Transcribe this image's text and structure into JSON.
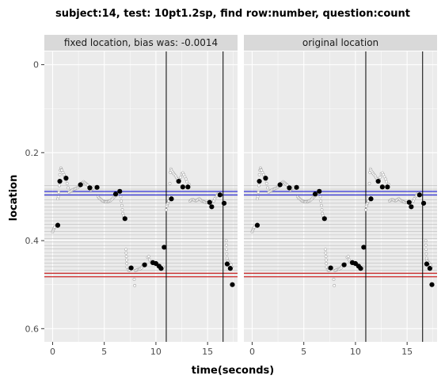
{
  "chart_data": {
    "type": "scatter",
    "title": "subject:14, test: 10pt1.2sp, find row:number, question:count",
    "xlabel": "time(seconds)",
    "ylabel": "location",
    "xlim": [
      -0.8,
      17.9
    ],
    "ylim": [
      0.63,
      -0.03
    ],
    "y_reversed": true,
    "x_ticks": [
      0,
      5,
      10,
      15
    ],
    "x_tick_labels": [
      "0",
      "5",
      "10",
      "15"
    ],
    "y_ticks": [
      0.0,
      0.2,
      0.4,
      0.6
    ],
    "y_tick_labels": [
      "0",
      "0.2",
      "0.4",
      "0.6"
    ],
    "grid": true,
    "panels": [
      {
        "strip": "fixed location, bias was: -0.0014"
      },
      {
        "strip": "original location"
      }
    ],
    "colors": {
      "panel_bg": "#ebebeb",
      "strip_bg": "#d9d9d9",
      "blue_lines": "#0000cc",
      "red_lines": "#cc0000",
      "row_lines": "#bdbdbd",
      "raw_points": "#a6a6a6",
      "fixations": "#000000",
      "vlines": "#000000"
    },
    "vertical_lines_x": [
      11.0,
      16.5
    ],
    "blue_lines_y": [
      0.288,
      0.296
    ],
    "red_lines_y": [
      0.474,
      0.482
    ],
    "row_lines_y": [
      0.275,
      0.283,
      0.291,
      0.299,
      0.307,
      0.315,
      0.323,
      0.331,
      0.339,
      0.347,
      0.355,
      0.363,
      0.371,
      0.379,
      0.387,
      0.395,
      0.403,
      0.411,
      0.419,
      0.427,
      0.435,
      0.443,
      0.451,
      0.459,
      0.467,
      0.475,
      0.483
    ],
    "fixations": [
      {
        "x": 0.5,
        "y": 0.365
      },
      {
        "x": 0.7,
        "y": 0.265
      },
      {
        "x": 1.3,
        "y": 0.258
      },
      {
        "x": 2.7,
        "y": 0.273
      },
      {
        "x": 3.6,
        "y": 0.28
      },
      {
        "x": 4.3,
        "y": 0.279
      },
      {
        "x": 6.1,
        "y": 0.294
      },
      {
        "x": 6.5,
        "y": 0.288
      },
      {
        "x": 7.0,
        "y": 0.35
      },
      {
        "x": 7.6,
        "y": 0.462
      },
      {
        "x": 8.9,
        "y": 0.455
      },
      {
        "x": 9.7,
        "y": 0.45
      },
      {
        "x": 10.0,
        "y": 0.452
      },
      {
        "x": 10.3,
        "y": 0.458
      },
      {
        "x": 10.5,
        "y": 0.463
      },
      {
        "x": 10.8,
        "y": 0.415
      },
      {
        "x": 11.5,
        "y": 0.305
      },
      {
        "x": 12.2,
        "y": 0.265
      },
      {
        "x": 12.6,
        "y": 0.278
      },
      {
        "x": 13.1,
        "y": 0.278
      },
      {
        "x": 15.2,
        "y": 0.313
      },
      {
        "x": 15.4,
        "y": 0.323
      },
      {
        "x": 16.2,
        "y": 0.296
      },
      {
        "x": 16.6,
        "y": 0.315
      },
      {
        "x": 16.9,
        "y": 0.453
      },
      {
        "x": 17.2,
        "y": 0.463
      },
      {
        "x": 17.4,
        "y": 0.5
      }
    ],
    "raw_points": [
      {
        "x": 0.0,
        "y": 0.38
      },
      {
        "x": 0.05,
        "y": 0.377
      },
      {
        "x": 0.1,
        "y": 0.374
      },
      {
        "x": 0.15,
        "y": 0.371
      },
      {
        "x": 0.2,
        "y": 0.369
      },
      {
        "x": 0.4,
        "y": 0.366
      },
      {
        "x": 0.45,
        "y": 0.364
      },
      {
        "x": 0.5,
        "y": 0.305
      },
      {
        "x": 0.55,
        "y": 0.3
      },
      {
        "x": 0.6,
        "y": 0.29
      },
      {
        "x": 0.65,
        "y": 0.275
      },
      {
        "x": 0.7,
        "y": 0.25
      },
      {
        "x": 0.75,
        "y": 0.24
      },
      {
        "x": 0.8,
        "y": 0.235
      },
      {
        "x": 0.85,
        "y": 0.238
      },
      {
        "x": 0.9,
        "y": 0.24
      },
      {
        "x": 1.0,
        "y": 0.245
      },
      {
        "x": 1.1,
        "y": 0.25
      },
      {
        "x": 1.2,
        "y": 0.255
      },
      {
        "x": 1.3,
        "y": 0.262
      },
      {
        "x": 1.4,
        "y": 0.27
      },
      {
        "x": 1.5,
        "y": 0.28
      },
      {
        "x": 1.6,
        "y": 0.29
      },
      {
        "x": 1.7,
        "y": 0.288
      },
      {
        "x": 1.8,
        "y": 0.286
      },
      {
        "x": 1.9,
        "y": 0.285
      },
      {
        "x": 2.0,
        "y": 0.284
      },
      {
        "x": 2.1,
        "y": 0.283
      },
      {
        "x": 2.2,
        "y": 0.282
      },
      {
        "x": 2.3,
        "y": 0.281
      },
      {
        "x": 2.4,
        "y": 0.28
      },
      {
        "x": 2.5,
        "y": 0.278
      },
      {
        "x": 2.6,
        "y": 0.276
      },
      {
        "x": 2.7,
        "y": 0.272
      },
      {
        "x": 2.8,
        "y": 0.27
      },
      {
        "x": 2.9,
        "y": 0.268
      },
      {
        "x": 3.0,
        "y": 0.266
      },
      {
        "x": 3.1,
        "y": 0.268
      },
      {
        "x": 3.2,
        "y": 0.27
      },
      {
        "x": 3.3,
        "y": 0.272
      },
      {
        "x": 3.4,
        "y": 0.274
      },
      {
        "x": 3.5,
        "y": 0.278
      },
      {
        "x": 3.6,
        "y": 0.282
      },
      {
        "x": 3.7,
        "y": 0.285
      },
      {
        "x": 3.8,
        "y": 0.283
      },
      {
        "x": 3.9,
        "y": 0.281
      },
      {
        "x": 4.0,
        "y": 0.28
      },
      {
        "x": 4.2,
        "y": 0.281
      },
      {
        "x": 4.4,
        "y": 0.3
      },
      {
        "x": 4.5,
        "y": 0.303
      },
      {
        "x": 4.6,
        "y": 0.305
      },
      {
        "x": 4.7,
        "y": 0.307
      },
      {
        "x": 4.8,
        "y": 0.309
      },
      {
        "x": 4.9,
        "y": 0.31
      },
      {
        "x": 5.0,
        "y": 0.311
      },
      {
        "x": 5.1,
        "y": 0.312
      },
      {
        "x": 5.2,
        "y": 0.312
      },
      {
        "x": 5.3,
        "y": 0.311
      },
      {
        "x": 5.4,
        "y": 0.311
      },
      {
        "x": 5.5,
        "y": 0.31
      },
      {
        "x": 5.6,
        "y": 0.309
      },
      {
        "x": 5.7,
        "y": 0.307
      },
      {
        "x": 5.8,
        "y": 0.305
      },
      {
        "x": 5.9,
        "y": 0.302
      },
      {
        "x": 6.0,
        "y": 0.3
      },
      {
        "x": 6.1,
        "y": 0.298
      },
      {
        "x": 6.2,
        "y": 0.296
      },
      {
        "x": 6.3,
        "y": 0.293
      },
      {
        "x": 6.4,
        "y": 0.291
      },
      {
        "x": 6.5,
        "y": 0.292
      },
      {
        "x": 6.6,
        "y": 0.3
      },
      {
        "x": 6.65,
        "y": 0.31
      },
      {
        "x": 6.7,
        "y": 0.32
      },
      {
        "x": 6.75,
        "y": 0.33
      },
      {
        "x": 6.8,
        "y": 0.338
      },
      {
        "x": 6.85,
        "y": 0.343
      },
      {
        "x": 7.1,
        "y": 0.42
      },
      {
        "x": 7.12,
        "y": 0.428
      },
      {
        "x": 7.14,
        "y": 0.436
      },
      {
        "x": 7.16,
        "y": 0.444
      },
      {
        "x": 7.18,
        "y": 0.452
      },
      {
        "x": 7.2,
        "y": 0.46
      },
      {
        "x": 7.3,
        "y": 0.466
      },
      {
        "x": 7.4,
        "y": 0.468
      },
      {
        "x": 7.5,
        "y": 0.467
      },
      {
        "x": 7.9,
        "y": 0.488
      },
      {
        "x": 7.95,
        "y": 0.502
      },
      {
        "x": 8.0,
        "y": 0.468
      },
      {
        "x": 8.1,
        "y": 0.467
      },
      {
        "x": 8.2,
        "y": 0.466
      },
      {
        "x": 8.3,
        "y": 0.465
      },
      {
        "x": 8.4,
        "y": 0.465
      },
      {
        "x": 8.5,
        "y": 0.464
      },
      {
        "x": 8.6,
        "y": 0.462
      },
      {
        "x": 8.7,
        "y": 0.458
      },
      {
        "x": 8.8,
        "y": 0.455
      },
      {
        "x": 9.0,
        "y": 0.453
      },
      {
        "x": 9.2,
        "y": 0.438
      },
      {
        "x": 9.3,
        "y": 0.436
      },
      {
        "x": 9.4,
        "y": 0.444
      },
      {
        "x": 9.5,
        "y": 0.448
      },
      {
        "x": 9.6,
        "y": 0.449
      },
      {
        "x": 9.8,
        "y": 0.452
      },
      {
        "x": 9.9,
        "y": 0.452
      },
      {
        "x": 10.1,
        "y": 0.454
      },
      {
        "x": 10.2,
        "y": 0.456
      },
      {
        "x": 10.4,
        "y": 0.458
      },
      {
        "x": 10.6,
        "y": 0.465
      },
      {
        "x": 10.7,
        "y": 0.46
      },
      {
        "x": 11.0,
        "y": 0.33
      },
      {
        "x": 11.05,
        "y": 0.322
      },
      {
        "x": 11.1,
        "y": 0.318
      },
      {
        "x": 11.15,
        "y": 0.315
      },
      {
        "x": 11.2,
        "y": 0.312
      },
      {
        "x": 11.25,
        "y": 0.31
      },
      {
        "x": 11.3,
        "y": 0.3
      },
      {
        "x": 11.35,
        "y": 0.27
      },
      {
        "x": 11.4,
        "y": 0.245
      },
      {
        "x": 11.45,
        "y": 0.237
      },
      {
        "x": 11.5,
        "y": 0.24
      },
      {
        "x": 11.6,
        "y": 0.244
      },
      {
        "x": 11.7,
        "y": 0.247
      },
      {
        "x": 11.8,
        "y": 0.25
      },
      {
        "x": 11.9,
        "y": 0.253
      },
      {
        "x": 12.0,
        "y": 0.257
      },
      {
        "x": 12.1,
        "y": 0.26
      },
      {
        "x": 12.3,
        "y": 0.262
      },
      {
        "x": 12.4,
        "y": 0.256
      },
      {
        "x": 12.5,
        "y": 0.248
      },
      {
        "x": 12.6,
        "y": 0.246
      },
      {
        "x": 12.7,
        "y": 0.25
      },
      {
        "x": 12.8,
        "y": 0.255
      },
      {
        "x": 12.9,
        "y": 0.26
      },
      {
        "x": 13.0,
        "y": 0.266
      },
      {
        "x": 13.2,
        "y": 0.272
      },
      {
        "x": 13.3,
        "y": 0.31
      },
      {
        "x": 13.4,
        "y": 0.308
      },
      {
        "x": 13.5,
        "y": 0.307
      },
      {
        "x": 13.6,
        "y": 0.307
      },
      {
        "x": 13.7,
        "y": 0.308
      },
      {
        "x": 13.8,
        "y": 0.309
      },
      {
        "x": 13.9,
        "y": 0.309
      },
      {
        "x": 14.0,
        "y": 0.308
      },
      {
        "x": 14.1,
        "y": 0.306
      },
      {
        "x": 14.2,
        "y": 0.305
      },
      {
        "x": 14.3,
        "y": 0.307
      },
      {
        "x": 14.4,
        "y": 0.309
      },
      {
        "x": 14.5,
        "y": 0.31
      },
      {
        "x": 14.6,
        "y": 0.311
      },
      {
        "x": 14.7,
        "y": 0.312
      },
      {
        "x": 14.8,
        "y": 0.313
      },
      {
        "x": 14.9,
        "y": 0.313
      },
      {
        "x": 15.0,
        "y": 0.313
      },
      {
        "x": 15.6,
        "y": 0.31
      },
      {
        "x": 15.7,
        "y": 0.305
      },
      {
        "x": 15.8,
        "y": 0.3
      },
      {
        "x": 15.9,
        "y": 0.298
      },
      {
        "x": 16.0,
        "y": 0.294
      },
      {
        "x": 16.1,
        "y": 0.292
      },
      {
        "x": 16.3,
        "y": 0.296
      },
      {
        "x": 16.8,
        "y": 0.4
      },
      {
        "x": 16.82,
        "y": 0.41
      },
      {
        "x": 16.84,
        "y": 0.42
      },
      {
        "x": 16.86,
        "y": 0.43
      },
      {
        "x": 16.88,
        "y": 0.44
      },
      {
        "x": 16.9,
        "y": 0.445
      },
      {
        "x": 17.0,
        "y": 0.447
      },
      {
        "x": 17.1,
        "y": 0.45
      },
      {
        "x": 17.3,
        "y": 0.455
      },
      {
        "x": 17.35,
        "y": 0.46
      }
    ]
  }
}
